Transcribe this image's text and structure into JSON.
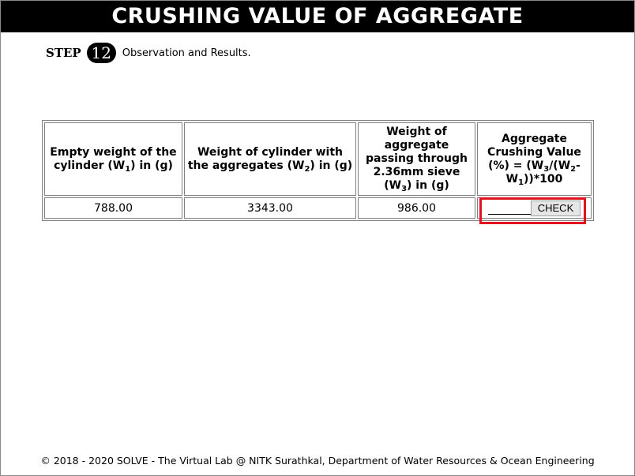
{
  "header": {
    "title": "CRUSHING VALUE OF AGGREGATE"
  },
  "step": {
    "label": "STEP",
    "number": "12",
    "description": "Observation and Results."
  },
  "table": {
    "headers": {
      "col1": {
        "pre": "Empty weight of the cylinder (W",
        "sub": "1",
        "post": ") in (g)"
      },
      "col2": {
        "pre": "Weight of cylinder with the aggregates (W",
        "sub": "2",
        "post": ") in (g)"
      },
      "col3": {
        "pre": "Weight of aggregate passing through 2.36mm sieve (W",
        "sub": "3",
        "post": ") in (g)"
      },
      "col4": {
        "line1": "Aggregate Crushing Value (%) = (W",
        "sub_a": "3",
        "mid1": "/(W",
        "sub_b": "2",
        "mid2": "-W",
        "sub_c": "1",
        "post": "))*100"
      }
    },
    "values": {
      "empty_weight": "788.00",
      "cylinder_with_aggregates": "3343.00",
      "passing_weight": "986.00",
      "answer_input": ""
    },
    "check_label": "CHECK"
  },
  "footer": {
    "text": "© 2018 - 2020 SOLVE - The Virtual Lab @ NITK Surathkal, Department of Water Resources & Ocean Engineering"
  },
  "colors": {
    "title_bg": "#000000",
    "highlight": "#e0141e",
    "button_bg": "#e6e6e6"
  }
}
